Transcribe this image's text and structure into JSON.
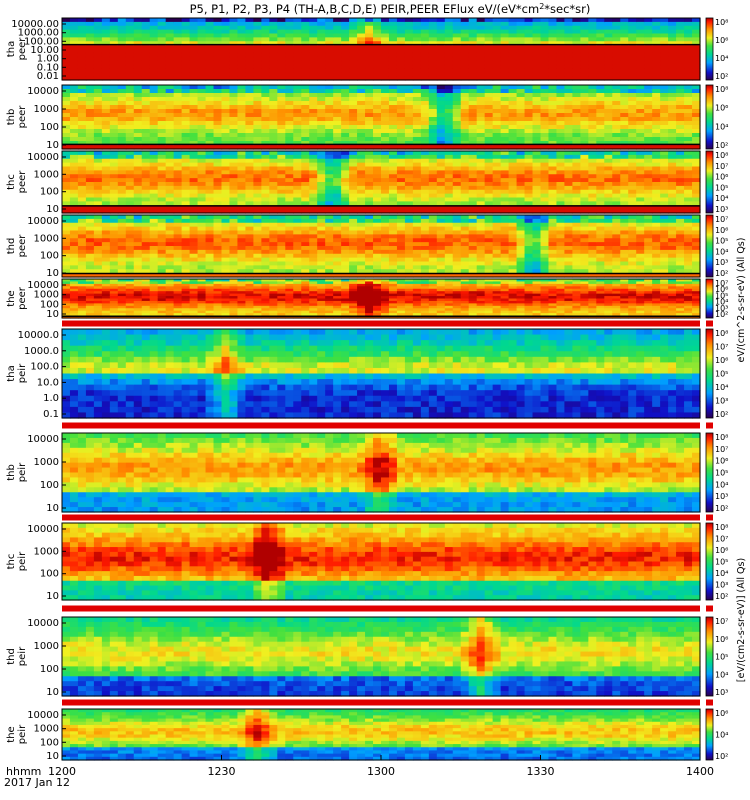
{
  "title": "P5, P1, P2, P3, P4 (TH-A,B,C,D,E) PEIR,PEER EFlux eV/(eV*cm",
  "title_sup": "2",
  "title_tail": "*sec*sr)",
  "x_axis": {
    "label_line1": "hhmm",
    "label_line2": "2017 Jan 12",
    "ticks": [
      "1200",
      "1230",
      "1300",
      "1330",
      "1400"
    ],
    "range": [
      0,
      120
    ]
  },
  "chart_data": {
    "type": "heatmap",
    "x_unit": "minutes after 12:00 UT",
    "xlim": [
      0,
      120
    ],
    "colormap": "rainbow (blue-low to red-high)",
    "panels": [
      {
        "id": "tha-peer",
        "ylabel": [
          "tha",
          "peer"
        ],
        "yticks": [
          "10000.00",
          "1000.00",
          "100.00",
          "10.00",
          "1.00",
          "0.10",
          "0.01"
        ],
        "log_range": [
          -2,
          4.3
        ],
        "cbar_ticks": [
          "10⁸",
          "10⁶",
          "10⁴",
          "10²"
        ],
        "cbar_range": [
          1,
          8.5
        ],
        "base_level": 0.45,
        "band_top": 1.6,
        "event_x": 57,
        "event_type": "spike"
      },
      {
        "id": "thb-peer",
        "ylabel": [
          "thb",
          "peer"
        ],
        "yticks": [
          "10000",
          "1000",
          "100",
          "10"
        ],
        "log_range": [
          0.8,
          4.3
        ],
        "cbar_ticks": [
          "10⁸",
          "10⁶",
          "10⁴",
          "10²"
        ],
        "cbar_range": [
          1,
          8.5
        ],
        "base_level": 0.55,
        "band_top": 1.05,
        "event_x": 71,
        "event_type": "dip"
      },
      {
        "id": "thc-peer",
        "ylabel": [
          "thc",
          "peer"
        ],
        "yticks": [
          "10000",
          "1000",
          "100",
          "10"
        ],
        "log_range": [
          0.8,
          4.3
        ],
        "cbar_ticks": [
          "10⁸",
          "10⁷",
          "10⁶",
          "10⁵",
          "10⁴",
          "10³"
        ],
        "cbar_range": [
          2.5,
          8.3
        ],
        "base_level": 0.6,
        "band_top": 1.2,
        "event_x": 50,
        "event_type": "dip"
      },
      {
        "id": "thd-peer",
        "ylabel": [
          "thd",
          "peer"
        ],
        "yticks": [
          "10000",
          "1000",
          "100",
          "10"
        ],
        "log_range": [
          0.8,
          4.3
        ],
        "cbar_ticks": [
          "10⁷",
          "10⁶",
          "10⁵",
          "10⁴",
          "10³",
          "10²"
        ],
        "cbar_range": [
          1.5,
          7.5
        ],
        "base_level": 0.62,
        "band_top": 1.0,
        "event_x": 88,
        "event_type": "dip"
      },
      {
        "id": "the-peer",
        "ylabel": [
          "the",
          "peer"
        ],
        "yticks": [
          "10000",
          "1000",
          "100",
          "10"
        ],
        "log_range": [
          0.8,
          4.3
        ],
        "cbar_ticks": [
          "10⁷",
          "10⁶",
          "10⁵",
          "10⁴",
          "10³",
          "10²"
        ],
        "cbar_range": [
          1.5,
          7.5
        ],
        "base_level": 0.72,
        "band_top": 0.95,
        "event_x": 57,
        "event_type": "spike"
      },
      {
        "id": "tha-peir",
        "ylabel": [
          "tha",
          "peir"
        ],
        "yticks": [
          "10000.0",
          "1000.0",
          "100.0",
          "10.0",
          "1.0",
          "0.1"
        ],
        "log_range": [
          -1,
          4.3
        ],
        "cbar_ticks": [
          "10⁸",
          "10⁷",
          "10⁶",
          "10⁵",
          "10⁴",
          "10³",
          "10²"
        ],
        "cbar_range": [
          1.5,
          8.5
        ],
        "base_level": 0.42,
        "band_top": null,
        "event_x": 30,
        "event_type": "spike"
      },
      {
        "id": "thb-peir",
        "ylabel": [
          "thb",
          "peir"
        ],
        "yticks": [
          "10000",
          "1000",
          "100",
          "10"
        ],
        "log_range": [
          0.8,
          4.3
        ],
        "cbar_ticks": [
          "10⁸",
          "10⁷",
          "10⁶",
          "10⁵",
          "10⁴",
          "10³",
          "10²"
        ],
        "cbar_range": [
          1.5,
          8.5
        ],
        "base_level": 0.55,
        "band_top": null,
        "event_x": 59,
        "event_type": "spike"
      },
      {
        "id": "thc-peir",
        "ylabel": [
          "thc",
          "peir"
        ],
        "yticks": [
          "10000",
          "1000",
          "100",
          "10"
        ],
        "log_range": [
          0.8,
          4.3
        ],
        "cbar_ticks": [
          "10⁸",
          "10⁷",
          "10⁶",
          "10⁵",
          "10⁴",
          "10³",
          "10²"
        ],
        "cbar_range": [
          1.5,
          8.5
        ],
        "base_level": 0.68,
        "band_top": null,
        "event_x": 38,
        "event_type": "spike"
      },
      {
        "id": "thd-peir",
        "ylabel": [
          "thd",
          "peir"
        ],
        "yticks": [
          "10000",
          "1000",
          "100",
          "10"
        ],
        "log_range": [
          0.8,
          4.3
        ],
        "cbar_ticks": [
          "10⁷",
          "10⁶",
          "10⁵",
          "10⁴",
          "10³"
        ],
        "cbar_range": [
          2.5,
          7.5
        ],
        "base_level": 0.45,
        "band_top": null,
        "event_x": 78,
        "event_type": "spike"
      },
      {
        "id": "the-peir",
        "ylabel": [
          "the",
          "peir"
        ],
        "yticks": [
          "10000",
          "1000",
          "100",
          "10"
        ],
        "log_range": [
          0.8,
          4.3
        ],
        "cbar_ticks": [
          "10⁶",
          "10⁴",
          "10²"
        ],
        "cbar_range": [
          1,
          7.5
        ],
        "base_level": 0.5,
        "band_top": null,
        "event_x": 36,
        "event_type": "spike"
      }
    ]
  },
  "colorbar_labels": {
    "upper": "eV/(cm^2-s-sr-eV) (All Qs)",
    "lower": "[eV/(cm2-s-sr-eV)] (All Qs)"
  }
}
